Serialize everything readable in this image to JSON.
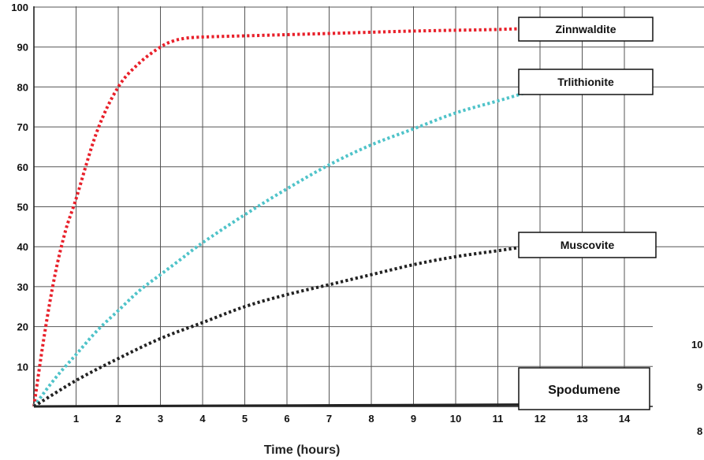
{
  "chart_data": {
    "type": "line",
    "xlabel": "Time (hours)",
    "ylabel": "",
    "xlim": [
      0,
      14.55
    ],
    "ylim": [
      0,
      100
    ],
    "x_ticks": [
      1,
      2,
      3,
      4,
      5,
      6,
      7,
      8,
      9,
      10,
      11,
      12,
      13,
      14
    ],
    "y_ticks": [
      10,
      20,
      30,
      40,
      50,
      60,
      70,
      80,
      90,
      100
    ],
    "grid": true,
    "series": [
      {
        "name": "Zinnwaldite",
        "color": "#e8202a",
        "style": "dotted",
        "x": [
          0,
          0.25,
          0.5,
          0.75,
          1,
          1.5,
          2,
          2.5,
          3,
          3.3,
          3.6,
          4,
          5,
          6,
          7,
          8,
          9,
          10,
          11,
          12,
          13,
          14,
          14.55
        ],
        "y": [
          0,
          18,
          33,
          44,
          52,
          69,
          80,
          86,
          90,
          91.5,
          92.2,
          92.5,
          92.8,
          93.1,
          93.4,
          93.7,
          94,
          94.2,
          94.4,
          94.8,
          95.3,
          95.8,
          96
        ]
      },
      {
        "name": "Trlithionite",
        "color": "#4fc3c9",
        "style": "dotted",
        "x": [
          0,
          0.5,
          1,
          1.5,
          2,
          2.5,
          3,
          3.5,
          4,
          5,
          6,
          7,
          8,
          9,
          10,
          11,
          12,
          13,
          14,
          14.55
        ],
        "y": [
          0,
          7,
          13,
          19,
          24,
          29,
          33,
          37,
          41,
          48,
          54.5,
          60.5,
          65.5,
          69.5,
          73.5,
          76.5,
          79.5,
          81.5,
          83.2,
          84
        ]
      },
      {
        "name": "Muscovite",
        "color": "#222222",
        "style": "dotted",
        "x": [
          0,
          1,
          2,
          3,
          4,
          5,
          6,
          7,
          8,
          9,
          10,
          11,
          12,
          13,
          14,
          14.55
        ],
        "y": [
          0,
          6.5,
          12,
          17,
          21,
          25,
          28,
          30.5,
          33,
          35.5,
          37.5,
          39,
          40.5,
          41.5,
          42.5,
          43
        ]
      },
      {
        "name": "Spodumene",
        "color": "#222222",
        "style": "solid",
        "x": [
          0,
          14.55
        ],
        "y": [
          0,
          0.6
        ]
      }
    ],
    "annotations": [
      "Zinnwaldite",
      "Trlithionite",
      "Muscovite",
      "Spodumene"
    ]
  },
  "fragments": [
    "10",
    "9",
    "8"
  ]
}
